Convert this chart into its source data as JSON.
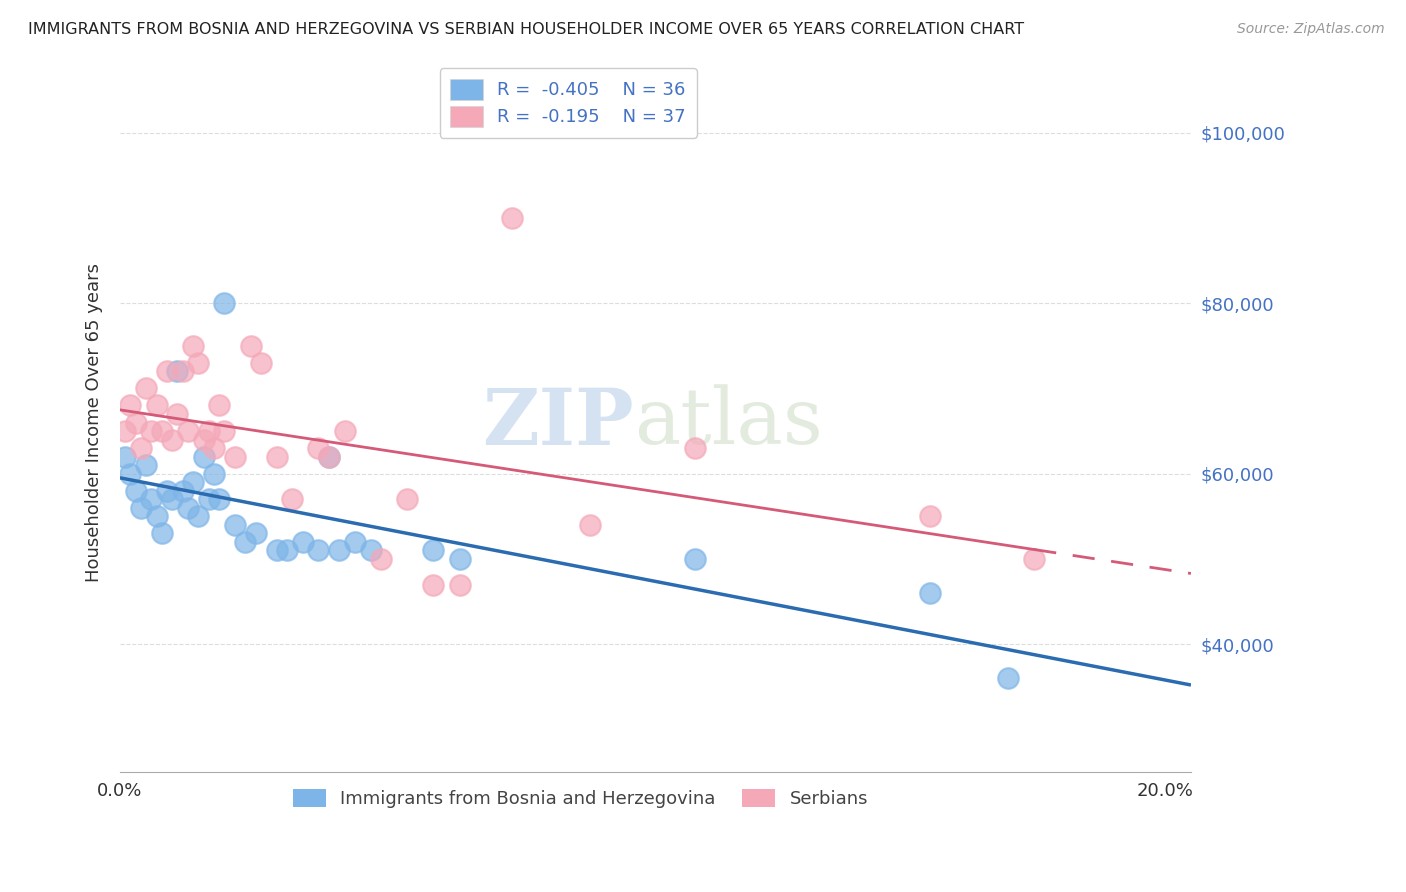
{
  "title": "IMMIGRANTS FROM BOSNIA AND HERZEGOVINA VS SERBIAN HOUSEHOLDER INCOME OVER 65 YEARS CORRELATION CHART",
  "source": "Source: ZipAtlas.com",
  "ylabel": "Householder Income Over 65 years",
  "xlim": [
    0.0,
    0.205
  ],
  "ylim": [
    25000,
    107000
  ],
  "yticks": [
    40000,
    60000,
    80000,
    100000
  ],
  "ytick_labels": [
    "$40,000",
    "$60,000",
    "$80,000",
    "$100,000"
  ],
  "xticks": [
    0.0,
    0.05,
    0.1,
    0.15,
    0.2
  ],
  "xtick_labels": [
    "0.0%",
    "",
    "",
    "",
    "20.0%"
  ],
  "bosnia_color": "#7EB5E8",
  "serbian_color": "#F4A8B8",
  "bosnia_line_color": "#2B6CB0",
  "serbian_line_color": "#D45A78",
  "legend_r_bosnia": "R =  -0.405",
  "legend_n_bosnia": "N = 36",
  "legend_r_serbian": "R =  -0.195",
  "legend_n_serbian": "N = 37",
  "bosnia_x": [
    0.001,
    0.002,
    0.003,
    0.004,
    0.005,
    0.006,
    0.007,
    0.008,
    0.009,
    0.01,
    0.011,
    0.012,
    0.013,
    0.014,
    0.015,
    0.016,
    0.017,
    0.018,
    0.019,
    0.02,
    0.022,
    0.024,
    0.026,
    0.03,
    0.032,
    0.035,
    0.038,
    0.04,
    0.042,
    0.045,
    0.048,
    0.06,
    0.065,
    0.11,
    0.155,
    0.17
  ],
  "bosnia_y": [
    62000,
    60000,
    58000,
    56000,
    61000,
    57000,
    55000,
    53000,
    58000,
    57000,
    72000,
    58000,
    56000,
    59000,
    55000,
    62000,
    57000,
    60000,
    57000,
    80000,
    54000,
    52000,
    53000,
    51000,
    51000,
    52000,
    51000,
    62000,
    51000,
    52000,
    51000,
    51000,
    50000,
    50000,
    46000,
    36000
  ],
  "serbian_x": [
    0.001,
    0.002,
    0.003,
    0.004,
    0.005,
    0.006,
    0.007,
    0.008,
    0.009,
    0.01,
    0.011,
    0.012,
    0.013,
    0.014,
    0.015,
    0.016,
    0.017,
    0.018,
    0.019,
    0.02,
    0.022,
    0.025,
    0.027,
    0.03,
    0.033,
    0.038,
    0.04,
    0.043,
    0.05,
    0.055,
    0.06,
    0.065,
    0.075,
    0.09,
    0.11,
    0.155,
    0.175
  ],
  "serbian_y": [
    65000,
    68000,
    66000,
    63000,
    70000,
    65000,
    68000,
    65000,
    72000,
    64000,
    67000,
    72000,
    65000,
    75000,
    73000,
    64000,
    65000,
    63000,
    68000,
    65000,
    62000,
    75000,
    73000,
    62000,
    57000,
    63000,
    62000,
    65000,
    50000,
    57000,
    47000,
    47000,
    90000,
    54000,
    63000,
    55000,
    50000
  ],
  "watermark_zip": "ZIP",
  "watermark_atlas": "atlas",
  "background_color": "#FFFFFF",
  "grid_color": "#DDDDDD"
}
